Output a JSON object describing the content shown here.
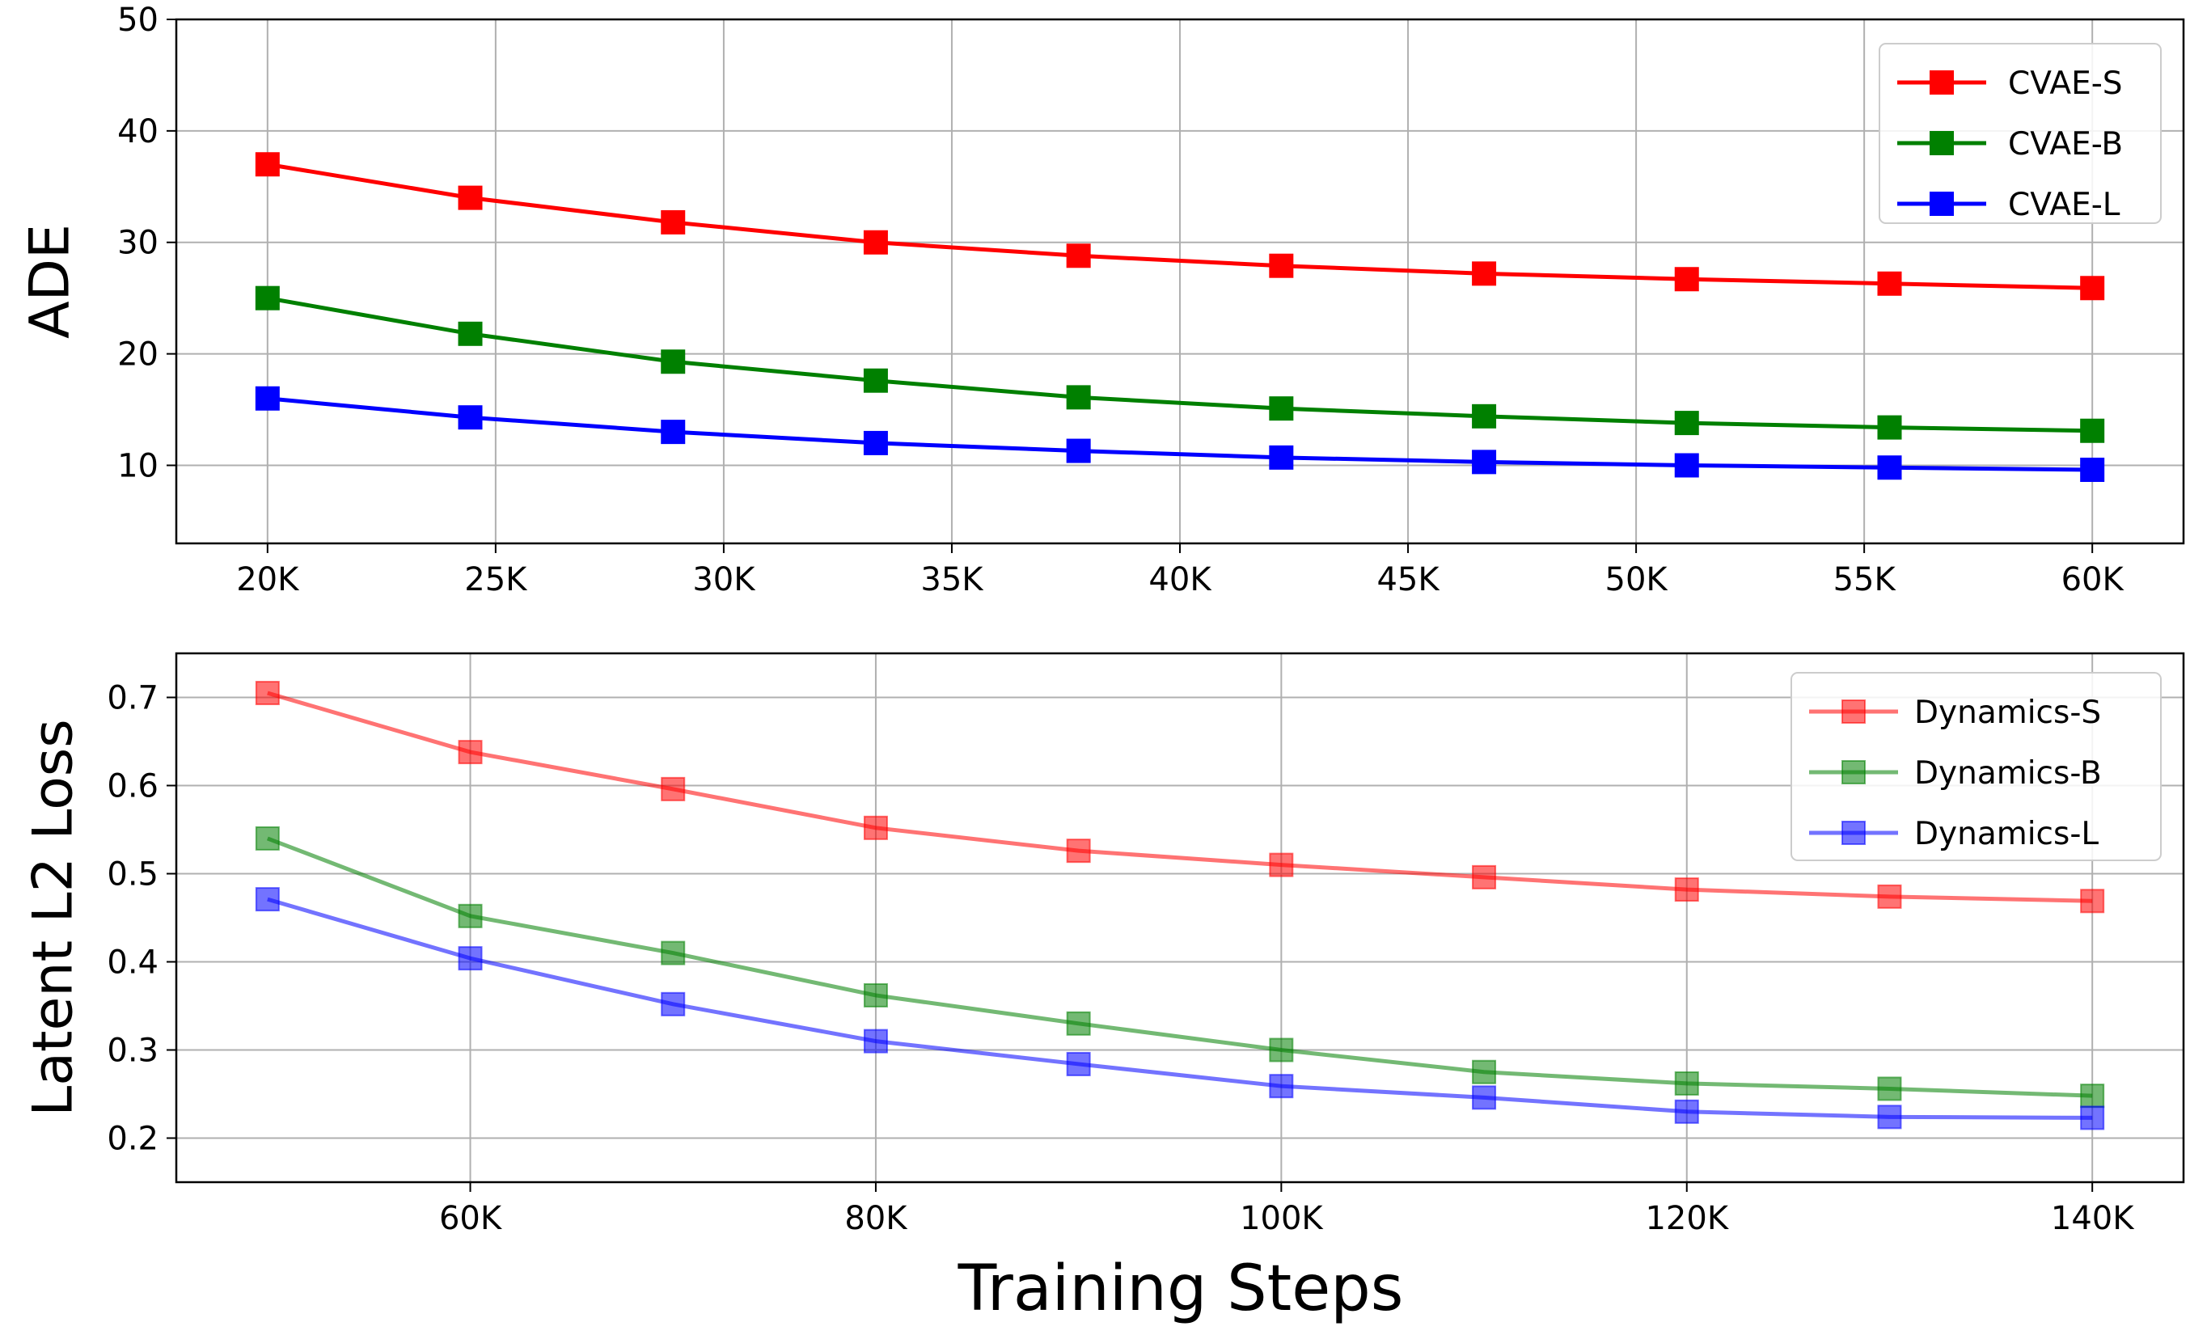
{
  "chart_data": [
    {
      "type": "line",
      "title": "",
      "xlabel": "",
      "ylabel": "ADE",
      "xlim": [
        18000,
        62000
      ],
      "ylim": [
        3,
        50
      ],
      "grid": true,
      "legend_position": "top-right",
      "xticks": [
        20000,
        25000,
        30000,
        35000,
        40000,
        45000,
        50000,
        55000,
        60000
      ],
      "xtick_labels": [
        "20K",
        "25K",
        "30K",
        "35K",
        "40K",
        "45K",
        "50K",
        "55K",
        "60K"
      ],
      "yticks": [
        10,
        20,
        30,
        40,
        50
      ],
      "ytick_labels": [
        "10",
        "20",
        "30",
        "40",
        "50"
      ],
      "marker": "square",
      "x": [
        20000,
        24444,
        28889,
        33333,
        37778,
        42222,
        46667,
        51111,
        55556,
        60000
      ],
      "series": [
        {
          "name": "CVAE-S",
          "color": "#ff0000",
          "opacity": 1,
          "values": [
            37.0,
            34.0,
            31.8,
            30.0,
            28.8,
            27.9,
            27.2,
            26.7,
            26.3,
            25.9
          ]
        },
        {
          "name": "CVAE-B",
          "color": "#008000",
          "opacity": 1,
          "values": [
            25.0,
            21.8,
            19.3,
            17.6,
            16.1,
            15.1,
            14.4,
            13.8,
            13.4,
            13.1
          ]
        },
        {
          "name": "CVAE-L",
          "color": "#0000ff",
          "opacity": 1,
          "values": [
            16.0,
            14.3,
            13.0,
            12.0,
            11.3,
            10.7,
            10.3,
            10.0,
            9.8,
            9.6
          ]
        }
      ]
    },
    {
      "type": "line",
      "title": "",
      "xlabel": "Training Steps",
      "ylabel": "Latent L2 Loss",
      "xlim": [
        45500,
        144500
      ],
      "ylim": [
        0.15,
        0.75
      ],
      "grid": true,
      "legend_position": "top-right",
      "xticks": [
        60000,
        80000,
        100000,
        120000,
        140000
      ],
      "xtick_labels": [
        "60K",
        "80K",
        "100K",
        "120K",
        "140K"
      ],
      "yticks": [
        0.2,
        0.3,
        0.4,
        0.5,
        0.6,
        0.7
      ],
      "ytick_labels": [
        "0.2",
        "0.3",
        "0.4",
        "0.5",
        "0.6",
        "0.7"
      ],
      "marker": "square",
      "x": [
        50000,
        60000,
        70000,
        80000,
        90000,
        100000,
        110000,
        120000,
        130000,
        140000
      ],
      "series": [
        {
          "name": "Dynamics-S",
          "color": "#ff0000",
          "opacity": 0.55,
          "values": [
            0.705,
            0.638,
            0.596,
            0.552,
            0.526,
            0.51,
            0.496,
            0.482,
            0.474,
            0.469
          ]
        },
        {
          "name": "Dynamics-B",
          "color": "#008000",
          "opacity": 0.55,
          "values": [
            0.54,
            0.452,
            0.41,
            0.362,
            0.33,
            0.3,
            0.275,
            0.262,
            0.256,
            0.248
          ]
        },
        {
          "name": "Dynamics-L",
          "color": "#0000ff",
          "opacity": 0.55,
          "values": [
            0.471,
            0.404,
            0.352,
            0.31,
            0.284,
            0.259,
            0.246,
            0.23,
            0.224,
            0.223
          ]
        }
      ]
    }
  ]
}
